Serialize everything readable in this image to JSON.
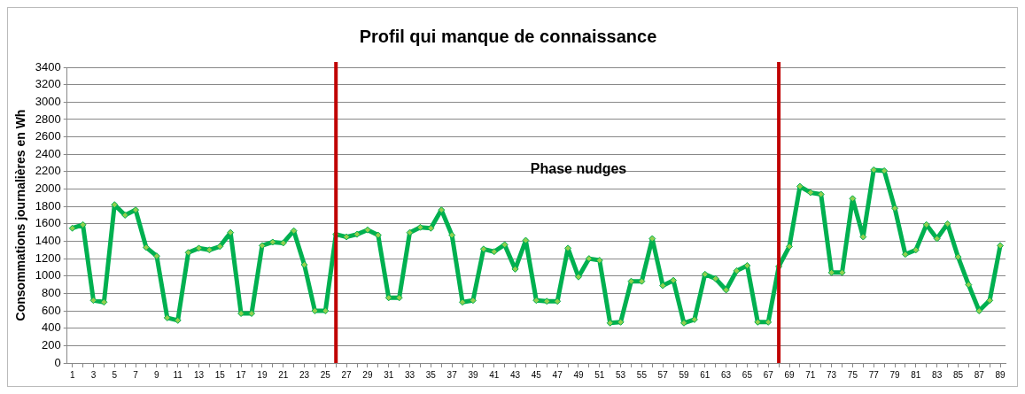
{
  "chart_data": {
    "type": "line",
    "title": "Profil qui manque de connaissance",
    "ylabel": "Consommations journalières en Wh",
    "x": [
      1,
      2,
      3,
      4,
      5,
      6,
      7,
      8,
      9,
      10,
      11,
      12,
      13,
      14,
      15,
      16,
      17,
      18,
      19,
      20,
      21,
      22,
      23,
      24,
      25,
      26,
      27,
      28,
      29,
      30,
      31,
      32,
      33,
      34,
      35,
      36,
      37,
      38,
      39,
      40,
      41,
      42,
      43,
      44,
      45,
      46,
      47,
      48,
      49,
      50,
      51,
      52,
      53,
      54,
      55,
      56,
      57,
      58,
      59,
      60,
      61,
      62,
      63,
      64,
      65,
      66,
      67,
      68,
      69,
      70,
      71,
      72,
      73,
      74,
      75,
      76,
      77,
      78,
      79,
      80,
      81,
      82,
      83,
      84,
      85,
      86,
      87,
      88,
      89
    ],
    "series": [
      {
        "color": "#00b050",
        "values": [
          1550,
          1590,
          720,
          700,
          1820,
          1700,
          1760,
          1330,
          1230,
          520,
          490,
          1270,
          1320,
          1300,
          1340,
          1500,
          570,
          570,
          1350,
          1390,
          1380,
          1520,
          1130,
          600,
          600,
          1480,
          1450,
          1480,
          1530,
          1470,
          750,
          750,
          1500,
          1560,
          1550,
          1760,
          1470,
          700,
          720,
          1310,
          1280,
          1360,
          1080,
          1410,
          720,
          710,
          710,
          1320,
          990,
          1200,
          1180,
          460,
          470,
          940,
          940,
          1430,
          890,
          950,
          460,
          500,
          1020,
          970,
          840,
          1060,
          1120,
          470,
          470,
          1110,
          1340,
          2030,
          1960,
          1940,
          1040,
          1040,
          1890,
          1450,
          2220,
          2210,
          1780,
          1250,
          1300,
          1590,
          1430,
          1600,
          1220,
          900,
          600,
          720,
          1350
        ]
      }
    ],
    "marker": "diamond",
    "line_style": "solid",
    "xlim": [
      0.5,
      89.5
    ],
    "xticks": [
      1,
      {
        "value": 2,
        "label": null
      },
      3,
      {
        "value": 4,
        "label": null
      },
      5,
      {
        "value": 6,
        "label": null
      },
      7,
      {
        "value": 8,
        "label": null
      },
      9,
      {
        "value": 10,
        "label": null
      },
      11,
      {
        "value": 12,
        "label": null
      },
      13,
      {
        "value": 14,
        "label": null
      },
      15,
      {
        "value": 16,
        "label": null
      },
      17,
      {
        "value": 18,
        "label": null
      },
      19,
      {
        "value": 20,
        "label": null
      },
      21,
      {
        "value": 22,
        "label": null
      },
      23,
      {
        "value": 24,
        "label": null
      },
      25,
      {
        "value": 26,
        "label": null
      },
      27,
      {
        "value": 28,
        "label": null
      },
      29,
      {
        "value": 30,
        "label": null
      },
      31,
      {
        "value": 32,
        "label": null
      },
      33,
      {
        "value": 34,
        "label": null
      },
      35,
      {
        "value": 36,
        "label": null
      },
      37,
      {
        "value": 38,
        "label": null
      },
      39,
      {
        "value": 40,
        "label": null
      },
      41,
      {
        "value": 42,
        "label": null
      },
      43,
      {
        "value": 44,
        "label": null
      },
      45,
      {
        "value": 46,
        "label": null
      },
      47,
      {
        "value": 48,
        "label": null
      },
      49,
      {
        "value": 50,
        "label": null
      },
      51,
      {
        "value": 52,
        "label": null
      },
      53,
      {
        "value": 54,
        "label": null
      },
      55,
      {
        "value": 56,
        "label": null
      },
      57,
      {
        "value": 58,
        "label": null
      },
      59,
      {
        "value": 60,
        "label": null
      },
      61,
      {
        "value": 62,
        "label": null
      },
      63,
      {
        "value": 64,
        "label": null
      },
      65,
      {
        "value": 66,
        "label": null
      },
      67,
      {
        "value": 68,
        "label": null
      },
      69,
      {
        "value": 70,
        "label": null
      },
      71,
      {
        "value": 72,
        "label": null
      },
      73,
      {
        "value": 74,
        "label": null
      },
      75,
      {
        "value": 76,
        "label": null
      },
      77,
      {
        "value": 78,
        "label": null
      },
      79,
      {
        "value": 80,
        "label": null
      },
      81,
      {
        "value": 82,
        "label": null
      },
      83,
      {
        "value": 84,
        "label": null
      },
      85,
      {
        "value": 86,
        "label": null
      },
      87,
      {
        "value": 88,
        "label": null
      },
      89
    ],
    "ylim": [
      0,
      3400
    ],
    "yticks": [
      0,
      200,
      400,
      600,
      800,
      1000,
      1200,
      1400,
      1600,
      1800,
      2000,
      2200,
      2400,
      2600,
      2800,
      3000,
      3200,
      3400
    ],
    "grid": "y",
    "ref_lines": [
      {
        "axis": "x",
        "value": 26,
        "color": "#c00000"
      },
      {
        "axis": "x",
        "value": 68,
        "color": "#c00000"
      }
    ],
    "annotations": [
      "Phase nudges"
    ]
  }
}
